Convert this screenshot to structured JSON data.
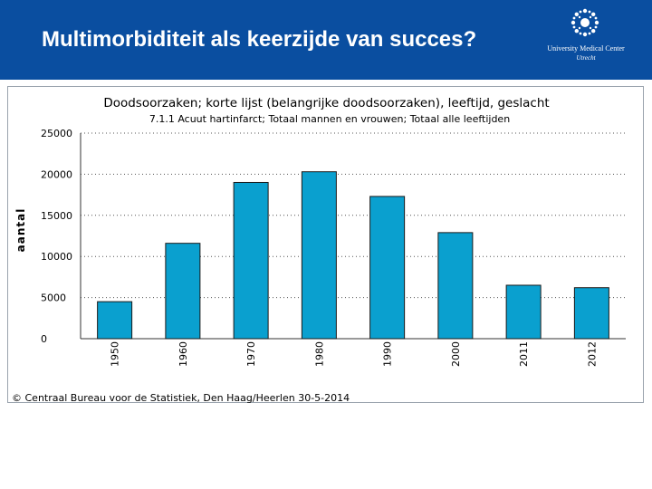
{
  "slide": {
    "title": "Multimorbiditeit als keerzijde van succes?"
  },
  "logo": {
    "line1": "University Medical Center",
    "line2": "Utrecht",
    "icon": "umc-utrecht-logo-icon"
  },
  "colors": {
    "header_bg": "#0a4ea0",
    "bar_fill": "#0aa0cf",
    "bar_stroke": "#1a1a1a",
    "grid": "#555555"
  },
  "chart_data": {
    "type": "bar",
    "title": "Doodsoorzaken; korte lijst (belangrijke doodsoorzaken), leeftijd, geslacht",
    "subtitle": "7.1.1 Acuut hartinfarct; Totaal mannen en vrouwen; Totaal alle leeftijden",
    "xlabel": "",
    "ylabel": "aantal",
    "categories": [
      "1950",
      "1960",
      "1970",
      "1980",
      "1990",
      "2000",
      "2011",
      "2012"
    ],
    "values": [
      4500,
      11600,
      19000,
      20300,
      17300,
      12900,
      6500,
      6200
    ],
    "ylim": [
      0,
      25000
    ],
    "yticks": [
      "0",
      "5000",
      "10000",
      "15000",
      "20000",
      "25000"
    ],
    "ytick_values": [
      0,
      5000,
      10000,
      15000,
      20000,
      25000
    ],
    "grid": "dotted horizontal",
    "legend": "none"
  },
  "footer": {
    "copyright": "© Centraal Bureau voor de Statistiek, Den Haag/Heerlen 30-5-2014"
  }
}
